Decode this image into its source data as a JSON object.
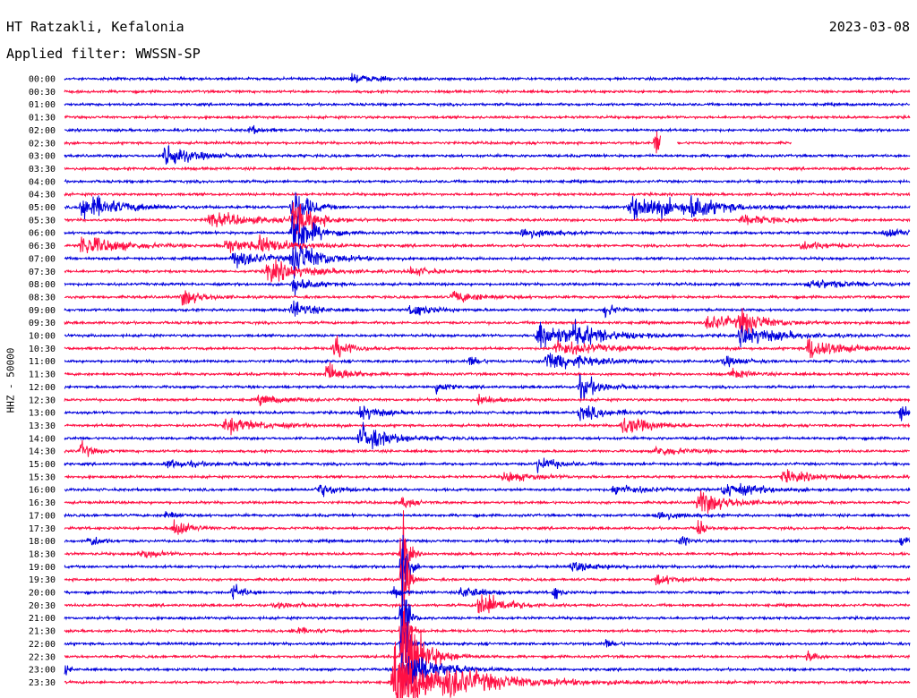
{
  "header": {
    "station": "HT Ratzakli, Kefalonia",
    "date": "2023-03-08",
    "filter": "Applied filter: WWSSN-SP"
  },
  "colors": {
    "odd": "#0000dd",
    "even": "#ff1044"
  },
  "chart_data": {
    "type": "line",
    "title": "HT Ratzakli, Kefalonia",
    "date": "2023-03-08",
    "ylabel": "HHZ - 50000",
    "xlabel": "",
    "grid": false,
    "traces": [
      {
        "label": "00:00",
        "color": "blue",
        "events": [
          {
            "t": 0.34,
            "a": 4,
            "d": 0.03
          }
        ]
      },
      {
        "label": "00:30",
        "color": "red",
        "events": []
      },
      {
        "label": "01:00",
        "color": "blue",
        "events": []
      },
      {
        "label": "01:30",
        "color": "red",
        "events": []
      },
      {
        "label": "02:00",
        "color": "blue",
        "events": [
          {
            "t": 0.22,
            "a": 5,
            "d": 0.01
          }
        ]
      },
      {
        "label": "02:30",
        "color": "red",
        "events": [
          {
            "t": 0.7,
            "a": -18,
            "d": 0.005
          }
        ],
        "gaps": [
          [
            0.705,
            0.725
          ],
          [
            0.86,
            1.0
          ]
        ]
      },
      {
        "label": "03:00",
        "color": "blue",
        "events": [
          {
            "t": 0.12,
            "a": -18,
            "d": 0.01
          },
          {
            "t": 0.13,
            "a": 5,
            "d": 0.04
          }
        ]
      },
      {
        "label": "03:30",
        "color": "red",
        "events": []
      },
      {
        "label": "04:00",
        "color": "blue",
        "events": []
      },
      {
        "label": "04:30",
        "color": "red",
        "events": []
      },
      {
        "label": "05:00",
        "color": "blue",
        "events": [
          {
            "t": 0.02,
            "a": 15,
            "d": 0.04
          },
          {
            "t": 0.27,
            "a": 30,
            "d": 0.015
          },
          {
            "t": 0.67,
            "a": 15,
            "d": 0.06
          },
          {
            "t": 0.74,
            "a": 12,
            "d": 0.02
          }
        ]
      },
      {
        "label": "05:30",
        "color": "red",
        "events": [
          {
            "t": 0.17,
            "a": 8,
            "d": 0.05
          },
          {
            "t": 0.27,
            "a": 25,
            "d": 0.02
          },
          {
            "t": 0.8,
            "a": 5,
            "d": 0.04
          }
        ]
      },
      {
        "label": "06:00",
        "color": "blue",
        "events": [
          {
            "t": 0.27,
            "a": 30,
            "d": 0.02
          },
          {
            "t": 0.54,
            "a": 6,
            "d": 0.03
          },
          {
            "t": 0.97,
            "a": 5,
            "d": 0.03
          }
        ]
      },
      {
        "label": "06:30",
        "color": "red",
        "events": [
          {
            "t": 0.02,
            "a": 12,
            "d": 0.04
          },
          {
            "t": 0.19,
            "a": 8,
            "d": 0.03
          },
          {
            "t": 0.23,
            "a": 8,
            "d": 0.04
          },
          {
            "t": 0.87,
            "a": 5,
            "d": 0.03
          }
        ]
      },
      {
        "label": "07:00",
        "color": "blue",
        "events": [
          {
            "t": 0.2,
            "a": 10,
            "d": 0.03
          },
          {
            "t": 0.27,
            "a": 20,
            "d": 0.03
          }
        ]
      },
      {
        "label": "07:30",
        "color": "red",
        "events": [
          {
            "t": 0.24,
            "a": 12,
            "d": 0.04
          },
          {
            "t": 0.41,
            "a": 5,
            "d": 0.02
          }
        ]
      },
      {
        "label": "08:00",
        "color": "blue",
        "events": [
          {
            "t": 0.27,
            "a": 10,
            "d": 0.02
          },
          {
            "t": 0.88,
            "a": 5,
            "d": 0.05
          }
        ]
      },
      {
        "label": "08:30",
        "color": "red",
        "events": [
          {
            "t": 0.14,
            "a": 10,
            "d": 0.02
          },
          {
            "t": 0.46,
            "a": 6,
            "d": 0.03
          }
        ]
      },
      {
        "label": "09:00",
        "color": "blue",
        "events": [
          {
            "t": 0.27,
            "a": 10,
            "d": 0.02
          },
          {
            "t": 0.41,
            "a": 8,
            "d": 0.02
          },
          {
            "t": 0.64,
            "a": 8,
            "d": 0.01
          }
        ]
      },
      {
        "label": "09:30",
        "color": "red",
        "events": [
          {
            "t": 0.76,
            "a": 8,
            "d": 0.05
          },
          {
            "t": 0.8,
            "a": 12,
            "d": 0.02
          }
        ]
      },
      {
        "label": "10:00",
        "color": "blue",
        "events": [
          {
            "t": 0.56,
            "a": 18,
            "d": 0.03
          },
          {
            "t": 0.6,
            "a": 10,
            "d": 0.04
          },
          {
            "t": 0.8,
            "a": 12,
            "d": 0.04
          }
        ]
      },
      {
        "label": "10:30",
        "color": "red",
        "events": [
          {
            "t": 0.32,
            "a": 14,
            "d": 0.015
          },
          {
            "t": 0.58,
            "a": 8,
            "d": 0.05
          },
          {
            "t": 0.88,
            "a": 14,
            "d": 0.03
          }
        ]
      },
      {
        "label": "11:00",
        "color": "blue",
        "events": [
          {
            "t": 0.57,
            "a": 12,
            "d": 0.04
          },
          {
            "t": 0.48,
            "a": 6,
            "d": 0.01
          },
          {
            "t": 0.78,
            "a": 5,
            "d": 0.02
          }
        ]
      },
      {
        "label": "11:30",
        "color": "red",
        "events": [
          {
            "t": 0.31,
            "a": 12,
            "d": 0.02
          },
          {
            "t": 0.79,
            "a": 5,
            "d": 0.02
          }
        ]
      },
      {
        "label": "12:00",
        "color": "blue",
        "events": [
          {
            "t": 0.61,
            "a": 14,
            "d": 0.02
          },
          {
            "t": 0.44,
            "a": 8,
            "d": 0.01
          }
        ]
      },
      {
        "label": "12:30",
        "color": "red",
        "events": [
          {
            "t": 0.23,
            "a": 5,
            "d": 0.03
          },
          {
            "t": 0.49,
            "a": 5,
            "d": 0.02
          }
        ]
      },
      {
        "label": "13:00",
        "color": "blue",
        "events": [
          {
            "t": 0.35,
            "a": 10,
            "d": 0.02
          },
          {
            "t": 0.61,
            "a": 8,
            "d": 0.03
          },
          {
            "t": 0.99,
            "a": 14,
            "d": 0.005
          }
        ]
      },
      {
        "label": "13:30",
        "color": "red",
        "events": [
          {
            "t": 0.19,
            "a": 8,
            "d": 0.04
          },
          {
            "t": 0.66,
            "a": 10,
            "d": 0.03
          }
        ]
      },
      {
        "label": "14:00",
        "color": "blue",
        "events": [
          {
            "t": 0.35,
            "a": 16,
            "d": 0.03
          }
        ]
      },
      {
        "label": "14:30",
        "color": "red",
        "events": [
          {
            "t": 0.02,
            "a": 10,
            "d": 0.01
          },
          {
            "t": 0.7,
            "a": 5,
            "d": 0.03
          }
        ]
      },
      {
        "label": "15:00",
        "color": "blue",
        "events": [
          {
            "t": 0.56,
            "a": 8,
            "d": 0.02
          },
          {
            "t": 0.12,
            "a": 4,
            "d": 0.04
          }
        ]
      },
      {
        "label": "15:30",
        "color": "red",
        "events": [
          {
            "t": 0.52,
            "a": 6,
            "d": 0.03
          },
          {
            "t": 0.85,
            "a": 6,
            "d": 0.04
          }
        ]
      },
      {
        "label": "16:00",
        "color": "blue",
        "events": [
          {
            "t": 0.3,
            "a": 8,
            "d": 0.02
          },
          {
            "t": 0.65,
            "a": 6,
            "d": 0.03
          },
          {
            "t": 0.78,
            "a": 8,
            "d": 0.04
          }
        ]
      },
      {
        "label": "16:30",
        "color": "red",
        "events": [
          {
            "t": 0.75,
            "a": 14,
            "d": 0.03
          },
          {
            "t": 0.4,
            "a": 8,
            "d": 0.01
          }
        ]
      },
      {
        "label": "17:00",
        "color": "blue",
        "events": [
          {
            "t": 0.12,
            "a": 6,
            "d": 0.01
          },
          {
            "t": 0.7,
            "a": 6,
            "d": 0.02
          }
        ]
      },
      {
        "label": "17:30",
        "color": "red",
        "events": [
          {
            "t": 0.13,
            "a": 12,
            "d": 0.015
          },
          {
            "t": 0.75,
            "a": 14,
            "d": 0.005
          }
        ]
      },
      {
        "label": "18:00",
        "color": "blue",
        "events": [
          {
            "t": 0.03,
            "a": 8,
            "d": 0.01
          },
          {
            "t": 0.99,
            "a": 6,
            "d": 0.01
          },
          {
            "t": 0.73,
            "a": 5,
            "d": 0.01
          }
        ]
      },
      {
        "label": "18:30",
        "color": "red",
        "events": [
          {
            "t": 0.4,
            "a": 60,
            "d": 0.005
          },
          {
            "t": 0.09,
            "a": 5,
            "d": 0.02
          }
        ]
      },
      {
        "label": "19:00",
        "color": "blue",
        "events": [
          {
            "t": 0.4,
            "a": 60,
            "d": 0.005
          },
          {
            "t": 0.6,
            "a": 5,
            "d": 0.03
          }
        ]
      },
      {
        "label": "19:30",
        "color": "red",
        "events": [
          {
            "t": 0.4,
            "a": 60,
            "d": 0.005
          },
          {
            "t": 0.7,
            "a": 6,
            "d": 0.02
          }
        ]
      },
      {
        "label": "20:00",
        "color": "blue",
        "events": [
          {
            "t": 0.2,
            "a": 10,
            "d": 0.01
          },
          {
            "t": 0.39,
            "a": 8,
            "d": 0.005
          },
          {
            "t": 0.47,
            "a": 8,
            "d": 0.02
          },
          {
            "t": 0.58,
            "a": 10,
            "d": 0.005
          }
        ]
      },
      {
        "label": "20:30",
        "color": "red",
        "events": [
          {
            "t": 0.49,
            "a": 16,
            "d": 0.025
          },
          {
            "t": 0.25,
            "a": 4,
            "d": 0.02
          }
        ]
      },
      {
        "label": "21:00",
        "color": "blue",
        "events": [
          {
            "t": 0.4,
            "a": 60,
            "d": 0.005
          }
        ]
      },
      {
        "label": "21:30",
        "color": "red",
        "events": [
          {
            "t": 0.4,
            "a": 60,
            "d": 0.005
          },
          {
            "t": 0.27,
            "a": 4,
            "d": 0.02
          }
        ]
      },
      {
        "label": "22:00",
        "color": "blue",
        "events": [
          {
            "t": 0.4,
            "a": 60,
            "d": 0.005
          },
          {
            "t": 0.64,
            "a": 5,
            "d": 0.01
          }
        ]
      },
      {
        "label": "22:30",
        "color": "red",
        "events": [
          {
            "t": 0.4,
            "a": 60,
            "d": 0.02
          },
          {
            "t": 0.88,
            "a": 6,
            "d": 0.01
          }
        ]
      },
      {
        "label": "23:00",
        "color": "blue",
        "events": [
          {
            "t": 0.4,
            "a": 30,
            "d": 0.03
          },
          {
            "t": 0.0,
            "a": 6,
            "d": 0.005
          }
        ]
      },
      {
        "label": "23:30",
        "color": "red",
        "events": [
          {
            "t": 0.39,
            "a": 40,
            "d": 0.04
          },
          {
            "t": 0.45,
            "a": 10,
            "d": 0.09
          }
        ]
      }
    ]
  }
}
